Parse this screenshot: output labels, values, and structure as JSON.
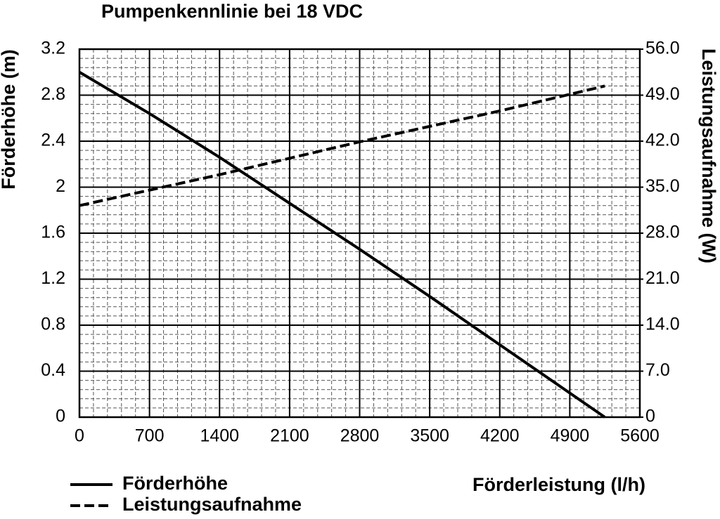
{
  "chart_data": {
    "type": "line",
    "title": "Pumpenkennlinie bei 18 VDC",
    "x_label": "Förderleistung (l/h)",
    "y_label": "Förderhöhe (m)",
    "y2_label": "Leistungsaufnahme (W)",
    "xlim": [
      0,
      5600
    ],
    "xticks": [
      0,
      700,
      1400,
      2100,
      2800,
      3500,
      4200,
      4900,
      5600
    ],
    "ylim": [
      0,
      3.2
    ],
    "yticks": [
      0,
      0.4,
      0.8,
      1.2,
      1.6,
      2.0,
      2.4,
      2.8,
      3.2
    ],
    "y2lim": [
      0,
      56
    ],
    "y2ticks": [
      0,
      {
        "value": 7,
        "label": "7.0"
      },
      {
        "value": 14,
        "label": "14.0"
      },
      {
        "value": 21,
        "label": "21.0"
      },
      {
        "value": 28,
        "label": "28.0"
      },
      {
        "value": 35,
        "label": "35.0"
      },
      {
        "value": 42,
        "label": "42.0"
      },
      {
        "value": 49,
        "label": "49.0"
      },
      {
        "value": 56,
        "label": "56.0"
      }
    ],
    "grid": true,
    "minor_divisions": 5,
    "series": [
      {
        "name": "Förderhöhe",
        "color": "#000000",
        "dash": "solid",
        "x": [
          0,
          700,
          1400,
          2100,
          2800,
          3500,
          4200,
          4900,
          5250
        ],
        "values": [
          3.0,
          2.64,
          2.26,
          1.86,
          1.46,
          1.05,
          0.63,
          0.21,
          0
        ]
      },
      {
        "name": "Leistungsaufnahme",
        "color": "#000000",
        "dash": "dashed",
        "axis": "y2",
        "x": [
          0,
          1400,
          2800,
          4200,
          5250
        ],
        "values": [
          32.2,
          36.9,
          41.9,
          46.6,
          50.4
        ]
      }
    ]
  }
}
